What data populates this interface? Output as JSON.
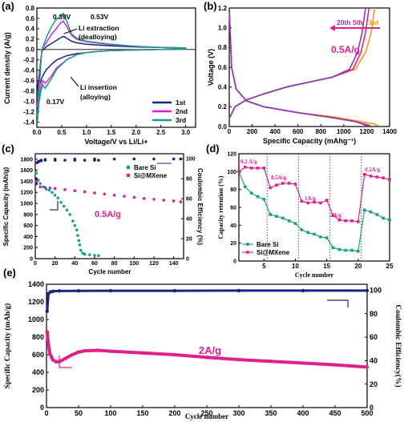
{
  "chart_data": [
    {
      "panel_label": "(a)",
      "type": "line",
      "xlabel": "Voltage/V vs Li/Li+",
      "ylabel": "Current density (A/g)",
      "xlim": [
        0,
        3.2
      ],
      "ylim": [
        -1.5,
        0.8
      ],
      "xticks": [
        "0.0",
        "0.5",
        "1.0",
        "1.5",
        "2.0",
        "2.5",
        "3.0"
      ],
      "yticks": [
        "0.8",
        "0.6",
        "0.4",
        "0.2",
        "0.0",
        "-0.2",
        "-0.4",
        "-0.6",
        "-0.8",
        "-1.0",
        "-1.2",
        "-1.4"
      ],
      "legend": [
        "1st",
        "2nd",
        "3rd"
      ],
      "legend_position": "bottom-right",
      "colors": [
        "#1a237e",
        "#e020d0",
        "#1a9e8c"
      ],
      "series": [
        {
          "name": "1st",
          "upper": {
            "x": [
              0.01,
              0.1,
              0.2,
              0.3,
              0.4,
              0.5,
              0.55,
              0.6,
              0.7,
              0.8,
              1.0,
              1.5,
              2.0,
              2.5,
              3.0
            ],
            "y": [
              -0.8,
              -0.03,
              0.06,
              0.12,
              0.18,
              0.24,
              0.25,
              0.22,
              0.16,
              0.13,
              0.1,
              0.07,
              0.05,
              0.04,
              0.03
            ]
          },
          "lower": {
            "x": [
              3.0,
              2.5,
              2.0,
              1.5,
              1.2,
              1.0,
              0.8,
              0.6,
              0.4,
              0.3,
              0.2,
              0.15,
              0.1,
              0.05,
              0.01
            ],
            "y": [
              0.01,
              0.0,
              -0.01,
              -0.02,
              -0.04,
              -0.06,
              -0.08,
              -0.12,
              -0.2,
              -0.28,
              -0.38,
              -0.45,
              -0.55,
              -0.7,
              -0.9
            ]
          }
        },
        {
          "name": "2nd",
          "upper": {
            "x": [
              0.01,
              0.1,
              0.2,
              0.3,
              0.39,
              0.45,
              0.53,
              0.6,
              0.7,
              0.8,
              1.0,
              1.5,
              2.0,
              2.5,
              3.0
            ],
            "y": [
              -1.1,
              0.0,
              0.15,
              0.3,
              0.4,
              0.48,
              0.55,
              0.45,
              0.27,
              0.2,
              0.15,
              0.09,
              0.06,
              0.04,
              0.03
            ]
          },
          "lower": {
            "x": [
              3.0,
              2.5,
              2.0,
              1.5,
              1.2,
              1.0,
              0.8,
              0.6,
              0.4,
              0.3,
              0.2,
              0.17,
              0.12,
              0.08,
              0.04,
              0.01
            ],
            "y": [
              0.01,
              0.0,
              -0.01,
              -0.02,
              -0.04,
              -0.06,
              -0.1,
              -0.2,
              -0.35,
              -0.5,
              -0.62,
              -0.65,
              -0.6,
              -0.72,
              -0.95,
              -1.25
            ]
          }
        },
        {
          "name": "3rd",
          "upper": {
            "x": [
              0.01,
              0.1,
              0.2,
              0.3,
              0.39,
              0.45,
              0.53,
              0.6,
              0.7,
              0.8,
              1.0,
              1.5,
              2.0,
              2.5,
              3.0
            ],
            "y": [
              -1.3,
              0.0,
              0.25,
              0.45,
              0.58,
              0.62,
              0.7,
              0.55,
              0.3,
              0.22,
              0.16,
              0.1,
              0.06,
              0.04,
              0.03
            ]
          },
          "lower": {
            "x": [
              3.0,
              2.5,
              2.0,
              1.5,
              1.2,
              1.0,
              0.8,
              0.6,
              0.4,
              0.3,
              0.2,
              0.17,
              0.12,
              0.08,
              0.04,
              0.01
            ],
            "y": [
              0.01,
              0.0,
              -0.01,
              -0.02,
              -0.04,
              -0.06,
              -0.1,
              -0.2,
              -0.38,
              -0.55,
              -0.7,
              -0.75,
              -0.68,
              -0.8,
              -1.05,
              -1.4
            ]
          }
        }
      ],
      "annotations": [
        "0.39V",
        "0.53V",
        "Li extraction",
        "(dealloying)",
        "0.17V",
        "Li insertion",
        "(alloying)"
      ]
    },
    {
      "panel_label": "(b)",
      "type": "line",
      "xlabel": "Specific Capacity (mAhg⁻¹)",
      "ylabel": "Voltage (V)",
      "xlim": [
        0,
        1400
      ],
      "ylim": [
        0,
        1.2
      ],
      "xticks": [
        "0",
        "200",
        "400",
        "600",
        "800",
        "1000",
        "1200",
        "1400"
      ],
      "yticks": [
        "0.0",
        "0.2",
        "0.4",
        "0.6",
        "0.8",
        "1.0",
        "1.2"
      ],
      "legend": [
        "20th",
        "5th",
        "1st"
      ],
      "annotations": [
        "0.5A/g"
      ],
      "colors": [
        "#8a3ab9",
        "#e0208c",
        "#f39c12"
      ],
      "series": [
        {
          "name": "20th",
          "charge": {
            "x": [
              0,
              50,
              150,
              300,
              500,
              700,
              900,
              1050,
              1120,
              1160,
              1190
            ],
            "y": [
              0.08,
              0.2,
              0.27,
              0.33,
              0.4,
              0.45,
              0.5,
              0.58,
              0.75,
              0.95,
              1.2
            ]
          },
          "discharge": {
            "x": [
              0,
              20,
              60,
              150,
              300,
              600,
              900,
              1100,
              1200
            ],
            "y": [
              1.2,
              0.6,
              0.38,
              0.26,
              0.2,
              0.14,
              0.09,
              0.05,
              0.01
            ]
          }
        },
        {
          "name": "5th",
          "charge": {
            "x": [
              0,
              50,
              150,
              300,
              500,
              700,
              900,
              1080,
              1150,
              1190,
              1220
            ],
            "y": [
              0.08,
              0.2,
              0.27,
              0.33,
              0.4,
              0.45,
              0.5,
              0.58,
              0.75,
              0.95,
              1.2
            ]
          },
          "discharge": {
            "x": [
              0,
              20,
              60,
              150,
              300,
              600,
              900,
              1100,
              1230
            ],
            "y": [
              1.2,
              0.6,
              0.38,
              0.26,
              0.2,
              0.14,
              0.09,
              0.05,
              0.01
            ]
          }
        },
        {
          "name": "1st",
          "charge": {
            "x": [
              0,
              50,
              150,
              300,
              500,
              700,
              900,
              1100,
              1190,
              1240,
              1270
            ],
            "y": [
              0.08,
              0.2,
              0.27,
              0.33,
              0.4,
              0.45,
              0.5,
              0.58,
              0.75,
              0.95,
              1.2
            ]
          },
          "discharge": {
            "x": [
              0,
              20,
              60,
              150,
              300,
              600,
              900,
              1100,
              1250,
              1300
            ],
            "y": [
              1.2,
              0.6,
              0.38,
              0.26,
              0.2,
              0.14,
              0.1,
              0.06,
              0.03,
              0.01
            ]
          }
        }
      ]
    },
    {
      "panel_label": "(c)",
      "type": "scatter",
      "xlabel": "Cycle number",
      "ylabel": "Specific Capacity (mAh/g)",
      "y2label": "Coulombic Efficiency (%)",
      "xlim": [
        0,
        150
      ],
      "ylim": [
        0,
        1900
      ],
      "y2lim": [
        0,
        105
      ],
      "xticks": [
        "0",
        "20",
        "40",
        "60",
        "80",
        "100",
        "120",
        "140"
      ],
      "yticks": [
        "0",
        "200",
        "400",
        "600",
        "800",
        "1000",
        "1200",
        "1400",
        "1600",
        "1800"
      ],
      "y2ticks": [
        "0",
        "20",
        "40",
        "60",
        "80",
        "100"
      ],
      "legend": [
        "Bare Si",
        "Si@MXene"
      ],
      "legend_position": "top-right",
      "annotations": [
        "0.5A/g"
      ],
      "series": [
        {
          "name": "Bare Si",
          "color": "#1a9e8c",
          "x": [
            1,
            3,
            5,
            8,
            11,
            14,
            17,
            20,
            23,
            26,
            29,
            32,
            35,
            38,
            40,
            42,
            43,
            44,
            45,
            46,
            48,
            50,
            55,
            60,
            64
          ],
          "y": [
            1550,
            1420,
            1360,
            1300,
            1260,
            1240,
            1200,
            1150,
            1100,
            1020,
            950,
            880,
            800,
            680,
            600,
            520,
            420,
            330,
            250,
            150,
            100,
            80,
            70,
            60,
            55
          ]
        },
        {
          "name": "Si@MXene",
          "color": "#e0208c",
          "x": [
            1,
            5,
            10,
            15,
            20,
            30,
            40,
            50,
            60,
            70,
            80,
            90,
            100,
            110,
            120,
            130,
            140,
            147
          ],
          "y": [
            1400,
            1300,
            1290,
            1280,
            1270,
            1250,
            1230,
            1210,
            1190,
            1170,
            1150,
            1130,
            1110,
            1090,
            1075,
            1060,
            1045,
            1030
          ]
        },
        {
          "name": "Bare Si CE",
          "color": "#1a237e",
          "x": [
            1,
            2,
            4,
            6,
            10,
            20,
            30,
            40,
            50,
            60,
            64
          ],
          "y2": [
            80,
            96,
            97.5,
            98,
            98.5,
            98.5,
            98.5,
            98.5,
            98.5,
            98.5,
            98.5
          ]
        },
        {
          "name": "Si@MXene CE",
          "color": "#1a237e",
          "x": [
            1,
            3,
            6,
            10,
            20,
            40,
            60,
            80,
            100,
            120,
            140,
            147
          ],
          "y2": [
            75,
            97,
            98.5,
            99.2,
            99.5,
            99.6,
            99.7,
            99.7,
            99.8,
            99.8,
            99.8,
            99.8
          ]
        }
      ]
    },
    {
      "panel_label": "(d)",
      "type": "line",
      "xlabel": "Cycle number",
      "ylabel": "Capacity retention (%)",
      "xlim": [
        1,
        25
      ],
      "ylim": [
        0,
        120
      ],
      "xticks": [
        "5",
        "10",
        "15",
        "20",
        "25"
      ],
      "yticks": [
        "0",
        "20",
        "40",
        "60",
        "80",
        "100",
        "120"
      ],
      "legend": [
        "Bare Si",
        "Si@MXene"
      ],
      "legend_position": "bottom-left",
      "rate_labels": [
        "0.2 A/g",
        "0.5A/g",
        "1A/g",
        "2A/g",
        "0.2A/g"
      ],
      "series": [
        {
          "name": "Bare Si",
          "color": "#1a9e8c",
          "x": [
            1,
            2,
            3,
            4,
            5,
            6,
            7,
            8,
            9,
            10,
            11,
            12,
            13,
            14,
            15,
            16,
            17,
            18,
            19,
            20,
            21,
            22,
            23,
            24,
            25
          ],
          "y": [
            100,
            83,
            76,
            72,
            69,
            52,
            50,
            48,
            45,
            42,
            35,
            32,
            30,
            27,
            26,
            15,
            13,
            12,
            12,
            11,
            57,
            55,
            52,
            48,
            46
          ]
        },
        {
          "name": "Si@MXene",
          "color": "#e0208c",
          "x": [
            1,
            2,
            3,
            4,
            5,
            6,
            7,
            8,
            9,
            10,
            11,
            12,
            13,
            14,
            15,
            16,
            17,
            18,
            19,
            20,
            21,
            22,
            23,
            24,
            25
          ],
          "y": [
            100,
            105,
            104,
            104,
            104,
            82,
            85,
            87,
            87,
            86,
            67,
            65,
            66,
            65,
            68,
            51,
            46,
            45,
            45,
            44,
            97,
            95,
            94,
            93,
            91
          ]
        }
      ]
    },
    {
      "panel_label": "(e)",
      "type": "scatter",
      "xlabel": "Cycle number",
      "ylabel": "Specific Capacity (mAh/g)",
      "y2label": "Coulombic Efficiency(%)",
      "xlim": [
        0,
        500
      ],
      "ylim": [
        0,
        1400
      ],
      "y2lim": [
        0,
        105
      ],
      "xticks": [
        "0",
        "50",
        "100",
        "150",
        "200",
        "250",
        "300",
        "350",
        "400",
        "450",
        "500"
      ],
      "yticks": [
        "0",
        "200",
        "400",
        "600",
        "800",
        "1000",
        "1200",
        "1400"
      ],
      "y2ticks": [
        "0",
        "20",
        "40",
        "60",
        "80",
        "100"
      ],
      "annotations": [
        "2A/g"
      ],
      "series": [
        {
          "name": "Si@MXene capacity",
          "color": "#e0208c",
          "x": [
            1,
            3,
            5,
            8,
            10,
            15,
            20,
            30,
            40,
            50,
            60,
            80,
            100,
            150,
            200,
            250,
            300,
            350,
            400,
            450,
            500
          ],
          "y": [
            860,
            720,
            620,
            570,
            540,
            520,
            520,
            560,
            600,
            630,
            645,
            650,
            640,
            620,
            600,
            570,
            545,
            525,
            505,
            485,
            460
          ]
        },
        {
          "name": "Si@MXene CE",
          "color": "#1a237e",
          "x": [
            1,
            3,
            6,
            10,
            20,
            50,
            100,
            200,
            300,
            400,
            500
          ],
          "y2": [
            82,
            97,
            98.5,
            99,
            99.3,
            99.4,
            99.5,
            99.5,
            99.6,
            99.6,
            99.6
          ]
        }
      ]
    }
  ]
}
